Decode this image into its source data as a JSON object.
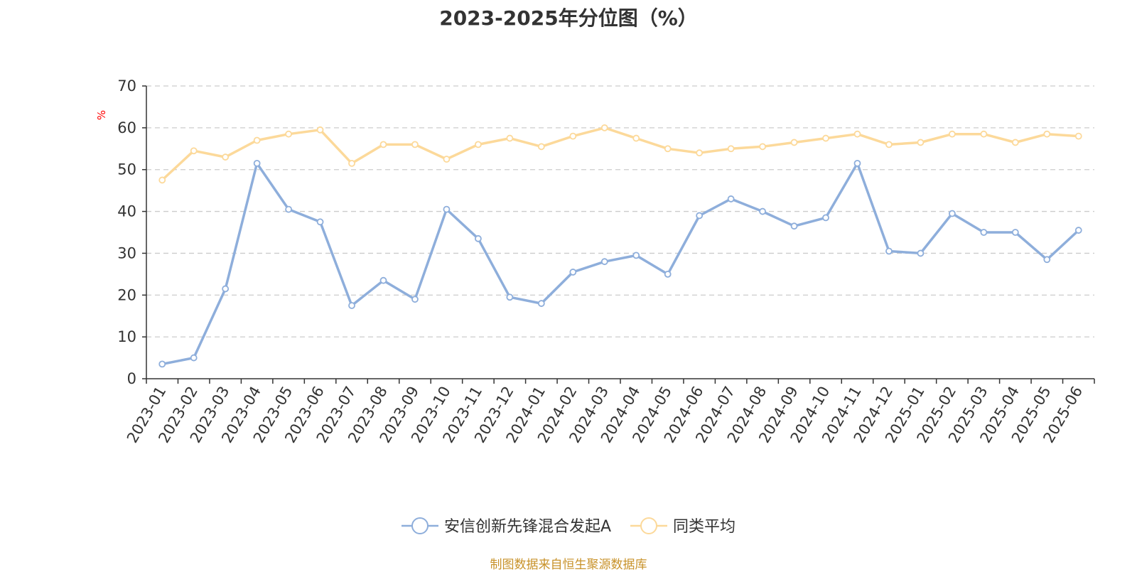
{
  "title": "2023-2025年分位图（%）",
  "source_note": "制图数据来自恒生聚源数据库",
  "colors": {
    "series_main": "#8eaedb",
    "series_avg": "#fcd99a",
    "grid": "#cccccc",
    "axis": "#333333",
    "unit_label": "#ff0000",
    "source_note": "#c8922a"
  },
  "chart_data": {
    "type": "line",
    "title": "2023-2025年分位图（%）",
    "xlabel": "",
    "ylabel": "%",
    "ylim": [
      0,
      70
    ],
    "yticks": [
      0,
      10,
      20,
      30,
      40,
      50,
      60,
      70
    ],
    "grid": true,
    "legend_position": "bottom-center",
    "categories": [
      "2023-01",
      "2023-02",
      "2023-03",
      "2023-04",
      "2023-05",
      "2023-06",
      "2023-07",
      "2023-08",
      "2023-09",
      "2023-10",
      "2023-11",
      "2023-12",
      "2024-01",
      "2024-02",
      "2024-03",
      "2024-04",
      "2024-05",
      "2024-06",
      "2024-07",
      "2024-08",
      "2024-09",
      "2024-10",
      "2024-11",
      "2024-12",
      "2025-01",
      "2025-02",
      "2025-03",
      "2025-04",
      "2025-05",
      "2025-06"
    ],
    "series": [
      {
        "name": "安信创新先锋混合发起A",
        "color": "#8eaedb",
        "values": [
          3.5,
          5.0,
          21.5,
          51.5,
          40.5,
          37.5,
          17.5,
          23.5,
          19.0,
          40.5,
          33.5,
          19.5,
          18.0,
          25.5,
          28.0,
          29.5,
          25.0,
          39.0,
          43.0,
          40.0,
          36.5,
          38.5,
          51.5,
          30.5,
          30.0,
          39.5,
          35.0,
          35.0,
          28.5,
          35.5
        ]
      },
      {
        "name": "同类平均",
        "color": "#fcd99a",
        "values": [
          47.5,
          54.5,
          53.0,
          57.0,
          58.5,
          59.5,
          51.5,
          56.0,
          56.0,
          52.5,
          56.0,
          57.5,
          55.5,
          58.0,
          60.0,
          57.5,
          55.0,
          54.0,
          55.0,
          55.5,
          56.5,
          57.5,
          58.5,
          56.0,
          56.5,
          58.5,
          58.5,
          56.5,
          58.5,
          58.0
        ]
      }
    ]
  }
}
